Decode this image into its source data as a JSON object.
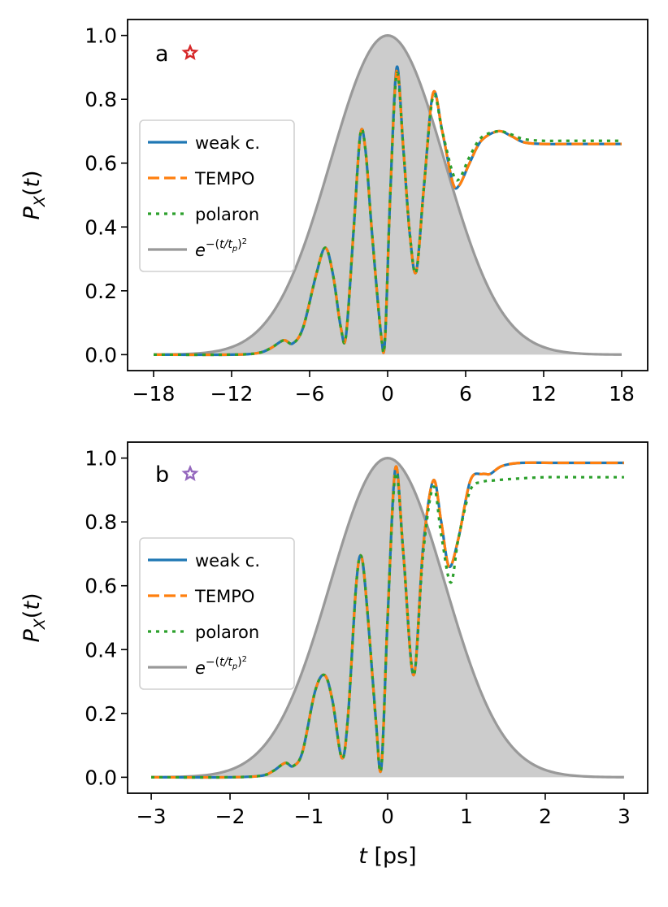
{
  "chart_data": [
    {
      "type": "line",
      "panel_label": "a",
      "star_color": "#d62728",
      "xlabel": "",
      "ylabel": "P_X(t)",
      "xlim": [
        -20,
        20
      ],
      "ylim": [
        -0.05,
        1.05
      ],
      "xticks": [
        -18,
        -12,
        -6,
        0,
        6,
        12,
        18
      ],
      "xtick_labels": [
        "−18",
        "−12",
        "−6",
        "0",
        "6",
        "12",
        "18"
      ],
      "yticks": [
        0.0,
        0.2,
        0.4,
        0.6,
        0.8,
        1.0
      ],
      "ytick_labels": [
        "0.0",
        "0.2",
        "0.4",
        "0.6",
        "0.8",
        "1.0"
      ],
      "legend_position": "center-left",
      "gaussian": {
        "name": "e^{-(t/t_p)^2}",
        "t_p": 6.2,
        "x_range": [
          -18,
          18
        ],
        "color": "#999999",
        "fill": "#cccccc"
      },
      "series": [
        {
          "name": "weak c.",
          "color": "#1f77b4",
          "style": "solid",
          "x": [
            -18,
            -12,
            -10,
            -9,
            -8,
            -7.3,
            -6.5,
            -5.5,
            -4.8,
            -4.2,
            -3.6,
            -3.2,
            -2.6,
            -2.1,
            -1.7,
            -1.2,
            -0.5,
            -0.2,
            0.2,
            0.7,
            1.2,
            1.7,
            2.2,
            2.8,
            3.5,
            4.2,
            5.0,
            5.5,
            6.3,
            7.2,
            8.5,
            9.5,
            10.5,
            12,
            14,
            18
          ],
          "y": [
            0.0,
            0.0,
            0.005,
            0.02,
            0.045,
            0.035,
            0.085,
            0.25,
            0.335,
            0.25,
            0.085,
            0.06,
            0.4,
            0.69,
            0.64,
            0.38,
            0.06,
            0.05,
            0.5,
            0.9,
            0.65,
            0.38,
            0.26,
            0.53,
            0.82,
            0.7,
            0.54,
            0.53,
            0.6,
            0.67,
            0.7,
            0.685,
            0.665,
            0.66,
            0.66,
            0.66
          ]
        },
        {
          "name": "TEMPO",
          "color": "#ff7f0e",
          "style": "dashed",
          "x": [
            -18,
            -12,
            -10,
            -9,
            -8,
            -7.3,
            -6.5,
            -5.5,
            -4.8,
            -4.2,
            -3.6,
            -3.2,
            -2.6,
            -2.1,
            -1.7,
            -1.2,
            -0.5,
            -0.2,
            0.2,
            0.7,
            1.2,
            1.7,
            2.2,
            2.8,
            3.5,
            4.2,
            5.0,
            5.5,
            6.3,
            7.2,
            8.5,
            9.5,
            10.5,
            12,
            14,
            18
          ],
          "y": [
            0.0,
            0.0,
            0.005,
            0.02,
            0.045,
            0.035,
            0.085,
            0.25,
            0.335,
            0.25,
            0.085,
            0.06,
            0.4,
            0.69,
            0.64,
            0.38,
            0.06,
            0.05,
            0.5,
            0.89,
            0.65,
            0.38,
            0.26,
            0.53,
            0.82,
            0.7,
            0.54,
            0.53,
            0.6,
            0.67,
            0.7,
            0.685,
            0.665,
            0.66,
            0.66,
            0.66
          ]
        },
        {
          "name": "polaron",
          "color": "#2ca02c",
          "style": "dotted",
          "x": [
            -18,
            -12,
            -10,
            -9,
            -8,
            -7.3,
            -6.5,
            -5.5,
            -4.8,
            -4.2,
            -3.6,
            -3.2,
            -2.6,
            -2.1,
            -1.7,
            -1.2,
            -0.5,
            -0.2,
            0.2,
            0.7,
            1.2,
            1.7,
            2.2,
            2.8,
            3.5,
            4.2,
            5.0,
            5.5,
            6.3,
            7.2,
            8.5,
            9.5,
            10.5,
            12,
            14,
            18
          ],
          "y": [
            0.0,
            0.0,
            0.005,
            0.02,
            0.045,
            0.035,
            0.085,
            0.25,
            0.335,
            0.25,
            0.085,
            0.06,
            0.4,
            0.69,
            0.64,
            0.38,
            0.06,
            0.05,
            0.5,
            0.88,
            0.65,
            0.38,
            0.26,
            0.53,
            0.81,
            0.7,
            0.57,
            0.55,
            0.62,
            0.68,
            0.7,
            0.69,
            0.675,
            0.67,
            0.67,
            0.67
          ]
        }
      ]
    },
    {
      "type": "line",
      "panel_label": "b",
      "star_color": "#9467bd",
      "xlabel": "t [ps]",
      "ylabel": "P_X(t)",
      "xlim": [
        -3.3,
        3.3
      ],
      "ylim": [
        -0.05,
        1.05
      ],
      "xticks": [
        -3,
        -2,
        -1,
        0,
        1,
        2,
        3
      ],
      "xtick_labels": [
        "−3",
        "−2",
        "−1",
        "0",
        "1",
        "2",
        "3"
      ],
      "yticks": [
        0.0,
        0.2,
        0.4,
        0.6,
        0.8,
        1.0
      ],
      "ytick_labels": [
        "0.0",
        "0.2",
        "0.4",
        "0.6",
        "0.8",
        "1.0"
      ],
      "legend_position": "center-left",
      "gaussian": {
        "name": "e^{-(t/t_p)^2}",
        "t_p": 1.03,
        "x_range": [
          -3,
          3
        ],
        "color": "#999999",
        "fill": "#cccccc"
      },
      "series": [
        {
          "name": "weak c.",
          "color": "#1f77b4",
          "style": "solid",
          "x": [
            -3,
            -2,
            -1.6,
            -1.45,
            -1.3,
            -1.2,
            -1.08,
            -0.92,
            -0.8,
            -0.7,
            -0.58,
            -0.5,
            -0.4,
            -0.33,
            -0.25,
            -0.15,
            -0.08,
            0.0,
            0.1,
            0.2,
            0.33,
            0.45,
            0.58,
            0.68,
            0.78,
            0.9,
            1.05,
            1.2,
            1.3,
            1.45,
            1.7,
            2.2,
            3
          ],
          "y": [
            0.0,
            0.0,
            0.005,
            0.02,
            0.045,
            0.035,
            0.08,
            0.27,
            0.32,
            0.24,
            0.06,
            0.2,
            0.6,
            0.69,
            0.5,
            0.18,
            0.03,
            0.5,
            0.97,
            0.7,
            0.32,
            0.72,
            0.93,
            0.8,
            0.66,
            0.75,
            0.93,
            0.95,
            0.95,
            0.975,
            0.985,
            0.985,
            0.985
          ]
        },
        {
          "name": "TEMPO",
          "color": "#ff7f0e",
          "style": "dashed",
          "x": [
            -3,
            -2,
            -1.6,
            -1.45,
            -1.3,
            -1.2,
            -1.08,
            -0.92,
            -0.8,
            -0.7,
            -0.58,
            -0.5,
            -0.4,
            -0.33,
            -0.25,
            -0.15,
            -0.08,
            0.0,
            0.1,
            0.2,
            0.33,
            0.45,
            0.58,
            0.68,
            0.78,
            0.9,
            1.05,
            1.2,
            1.3,
            1.45,
            1.7,
            2.2,
            3
          ],
          "y": [
            0.0,
            0.0,
            0.005,
            0.02,
            0.045,
            0.035,
            0.08,
            0.27,
            0.32,
            0.24,
            0.06,
            0.2,
            0.6,
            0.69,
            0.5,
            0.18,
            0.03,
            0.5,
            0.97,
            0.7,
            0.32,
            0.72,
            0.93,
            0.8,
            0.66,
            0.75,
            0.93,
            0.95,
            0.95,
            0.975,
            0.985,
            0.985,
            0.985
          ]
        },
        {
          "name": "polaron",
          "color": "#2ca02c",
          "style": "dotted",
          "x": [
            -3,
            -2,
            -1.6,
            -1.45,
            -1.3,
            -1.2,
            -1.08,
            -0.92,
            -0.8,
            -0.7,
            -0.58,
            -0.5,
            -0.4,
            -0.33,
            -0.25,
            -0.15,
            -0.08,
            0.0,
            0.1,
            0.2,
            0.33,
            0.45,
            0.58,
            0.68,
            0.8,
            0.9,
            1.05,
            1.2,
            1.35,
            1.6,
            2.0,
            2.5,
            3
          ],
          "y": [
            0.0,
            0.0,
            0.005,
            0.02,
            0.045,
            0.035,
            0.08,
            0.27,
            0.32,
            0.24,
            0.06,
            0.2,
            0.6,
            0.69,
            0.5,
            0.18,
            0.03,
            0.5,
            0.95,
            0.7,
            0.32,
            0.7,
            0.91,
            0.76,
            0.61,
            0.75,
            0.9,
            0.925,
            0.93,
            0.935,
            0.94,
            0.94,
            0.94
          ]
        }
      ]
    }
  ]
}
